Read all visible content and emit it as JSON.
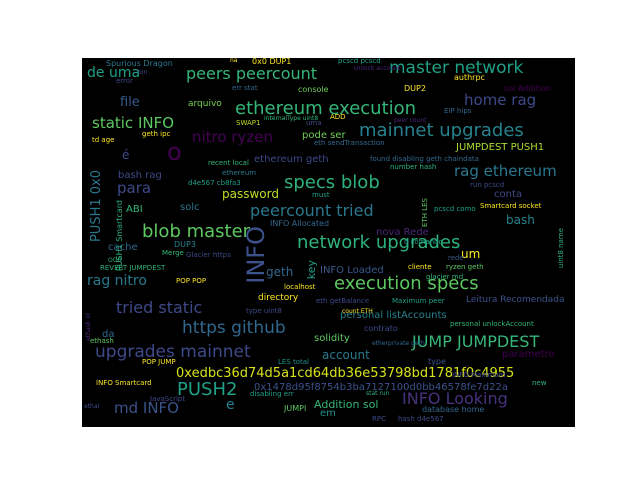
{
  "words": [
    {
      "text": "INFO",
      "color": "#3b528b"
    },
    {
      "text": "network upgrades",
      "color": "#2db27d"
    },
    {
      "text": "execution specs",
      "color": "#5ec962"
    },
    {
      "text": "blob master",
      "color": "#5ec962"
    },
    {
      "text": "ethereum execution",
      "color": "#35b779"
    },
    {
      "text": "mainnet upgrades",
      "color": "#26828e"
    },
    {
      "text": "specs blob",
      "color": "#2db27d"
    },
    {
      "text": "upgrades mainnet",
      "color": "#3e4989"
    },
    {
      "text": "https github",
      "color": "#31688e"
    },
    {
      "text": "master network",
      "color": "#1fa187"
    },
    {
      "text": "peers peercount",
      "color": "#35b779"
    },
    {
      "text": "peercount tried",
      "color": "#2a788e"
    },
    {
      "text": "tried static",
      "color": "#3e4989"
    },
    {
      "text": "JUMP JUMPDEST",
      "color": "#35b779"
    },
    {
      "text": "INFO Looking",
      "color": "#46327e"
    },
    {
      "text": "PUSH2",
      "color": "#1fa187"
    },
    {
      "text": "static INFO",
      "color": "#5ec962"
    },
    {
      "text": "home rag",
      "color": "#3e4989"
    },
    {
      "text": "rag ethereum",
      "color": "#2a788e"
    },
    {
      "text": "0xedbc36d74d5a1cd64db36e53798bd1781f0c4955",
      "color": "#d8e219"
    },
    {
      "text": "nitro ryzen",
      "color": "#440154"
    },
    {
      "text": "md INFO",
      "color": "#3b528b"
    },
    {
      "text": "para",
      "color": "#3e4989"
    },
    {
      "text": "o",
      "color": "#440154"
    },
    {
      "text": "de uma",
      "color": "#1fa187"
    },
    {
      "text": "rag nitro",
      "color": "#2a788e"
    },
    {
      "text": "PUSH1 0x0",
      "color": "#2a788e"
    },
    {
      "text": "file",
      "color": "#38598c"
    },
    {
      "text": "password",
      "color": "#bddf26"
    },
    {
      "text": "bash",
      "color": "#26828e"
    },
    {
      "text": "geth",
      "color": "#31688e"
    },
    {
      "text": "account",
      "color": "#2a788e"
    },
    {
      "text": "Addition sol",
      "color": "#35b779"
    },
    {
      "text": "personal listAccounts",
      "color": "#26828e"
    },
    {
      "text": "nova Rede",
      "color": "#482878"
    },
    {
      "text": "INFO Loaded",
      "color": "#38598c"
    },
    {
      "text": "JUMPDEST PUSH1",
      "color": "#addc30"
    },
    {
      "text": "pode ser",
      "color": "#6ece58"
    },
    {
      "text": "é",
      "color": "#3e4989"
    },
    {
      "text": "e",
      "color": "#26828e"
    },
    {
      "text": "key",
      "color": "#1fa187"
    },
    {
      "text": "um",
      "color": "#fde725"
    },
    {
      "text": "bash rag",
      "color": "#3e4989"
    },
    {
      "text": "solc",
      "color": "#2a788e"
    },
    {
      "text": "ABI",
      "color": "#35b779"
    },
    {
      "text": "cache",
      "color": "#31688e"
    },
    {
      "text": "PUSH1 Smartcard",
      "color": "#2db27d"
    },
    {
      "text": "directory",
      "color": "#fde725"
    },
    {
      "text": "solidity",
      "color": "#5ec962"
    },
    {
      "text": "conta",
      "color": "#3e4989"
    },
    {
      "text": "Leitura Recomendada",
      "color": "#3b528b"
    },
    {
      "text": "parametro",
      "color": "#440154"
    },
    {
      "text": "database home",
      "color": "#31688e"
    },
    {
      "text": "em",
      "color": "#21918c"
    },
    {
      "text": "arquivo",
      "color": "#7ad151"
    },
    {
      "text": "da",
      "color": "#31688e"
    },
    {
      "text": "DUP2",
      "color": "#fde725"
    },
    {
      "text": "console",
      "color": "#6ece58"
    },
    {
      "text": "Spurious Dragon",
      "color": "#2a788e"
    },
    {
      "text": "0x0 DUP1",
      "color": "#fde725"
    },
    {
      "text": "authrpc",
      "color": "#fde725"
    },
    {
      "text": "geth ipc",
      "color": "#fde725"
    },
    {
      "text": "sol Addition",
      "color": "#440154"
    },
    {
      "text": "pcscd pcscd",
      "color": "#1fa187"
    },
    {
      "text": "Unlock account",
      "color": "#482878"
    },
    {
      "text": "err stat",
      "color": "#31688e"
    },
    {
      "text": "internalType uint8",
      "color": "#35b779"
    },
    {
      "text": "ADD",
      "color": "#fde725"
    },
    {
      "text": "SWAP1",
      "color": "#bddf26"
    },
    {
      "text": "EIP hips",
      "color": "#31688e"
    },
    {
      "text": "td age",
      "color": "#fde725"
    },
    {
      "text": "eth sendTransaction",
      "color": "#31688e"
    },
    {
      "text": "ethereum geth",
      "color": "#3e4989"
    },
    {
      "text": "found disabling geth chaindata",
      "color": "#31688e"
    },
    {
      "text": "recent local",
      "color": "#35b779"
    },
    {
      "text": "number hash",
      "color": "#2db27d"
    },
    {
      "text": "d4e567 cb8fa3",
      "color": "#1fa187"
    },
    {
      "text": "ethereum",
      "color": "#2a788e"
    },
    {
      "text": "run pcscd",
      "color": "#3e4989"
    },
    {
      "text": "Smartcard socket",
      "color": "#fde725"
    },
    {
      "text": "pcscd como",
      "color": "#1fa187"
    },
    {
      "text": "INFO Allocated",
      "color": "#31688e"
    },
    {
      "text": "DUP3",
      "color": "#26828e"
    },
    {
      "text": "Merge",
      "color": "#35b779"
    },
    {
      "text": "Glacier https",
      "color": "#3e4989"
    },
    {
      "text": "REVERT JUMPDEST",
      "color": "#2db27d"
    },
    {
      "text": "POP POP",
      "color": "#fde725"
    },
    {
      "text": "localhost",
      "color": "#fde725"
    },
    {
      "text": "eth getBalance",
      "color": "#3e4989"
    },
    {
      "text": "Maximum peer",
      "color": "#1fa187"
    },
    {
      "text": "count ETH",
      "color": "#fde725"
    },
    {
      "text": "personal unlockAccount",
      "color": "#35b779"
    },
    {
      "text": "contrato",
      "color": "#3e4989"
    },
    {
      "text": "ethash",
      "color": "#5ec962"
    },
    {
      "text": "type uint8",
      "color": "#3e4989"
    },
    {
      "text": "POP JUMP",
      "color": "#fde725"
    },
    {
      "text": "LES total",
      "color": "#21918c"
    },
    {
      "text": "type",
      "color": "#3b528b"
    },
    {
      "text": "0x1478d95f8754b3ba7127100d0bb46578fe7d22a",
      "color": "#3b528b"
    },
    {
      "text": "INFO Smartcard",
      "color": "#fde725"
    },
    {
      "text": "JavaScript",
      "color": "#3e4989"
    },
    {
      "text": "disabling err",
      "color": "#1fa187"
    },
    {
      "text": "JUMPI",
      "color": "#5ec962"
    },
    {
      "text": "RPC",
      "color": "#3e4989"
    },
    {
      "text": "hash d4e567",
      "color": "#3e4989"
    },
    {
      "text": "new",
      "color": "#2db27d"
    },
    {
      "text": "INFO Maximum",
      "color": "#3e4989"
    },
    {
      "text": "cliente",
      "color": "#fde725"
    },
    {
      "text": "ryzen geth",
      "color": "#5ec962"
    },
    {
      "text": "o comando",
      "color": "#1fa187"
    },
    {
      "text": "glacier md",
      "color": "#35b779"
    },
    {
      "text": "rede",
      "color": "#38598c"
    },
    {
      "text": "uint8 name",
      "color": "#2db27d"
    },
    {
      "text": "ETH LES",
      "color": "#5ec962"
    },
    {
      "text": "ethash id",
      "color": "#482878"
    },
    {
      "text": "uma",
      "color": "#3e4989"
    },
    {
      "text": "must",
      "color": "#1fa187"
    },
    {
      "text": "na",
      "color": "#fde725"
    },
    {
      "text": "error",
      "color": "#3e4989"
    },
    {
      "text": "bin",
      "color": "#3e4989"
    },
    {
      "text": "peer count",
      "color": "#482878"
    },
    {
      "text": "OOB",
      "color": "#2db27d"
    },
    {
      "text": "etherprivate geth",
      "color": "#31688e"
    },
    {
      "text": "stat run",
      "color": "#2db27d"
    },
    {
      "text": "ethar",
      "color": "#3e4989"
    }
  ]
}
